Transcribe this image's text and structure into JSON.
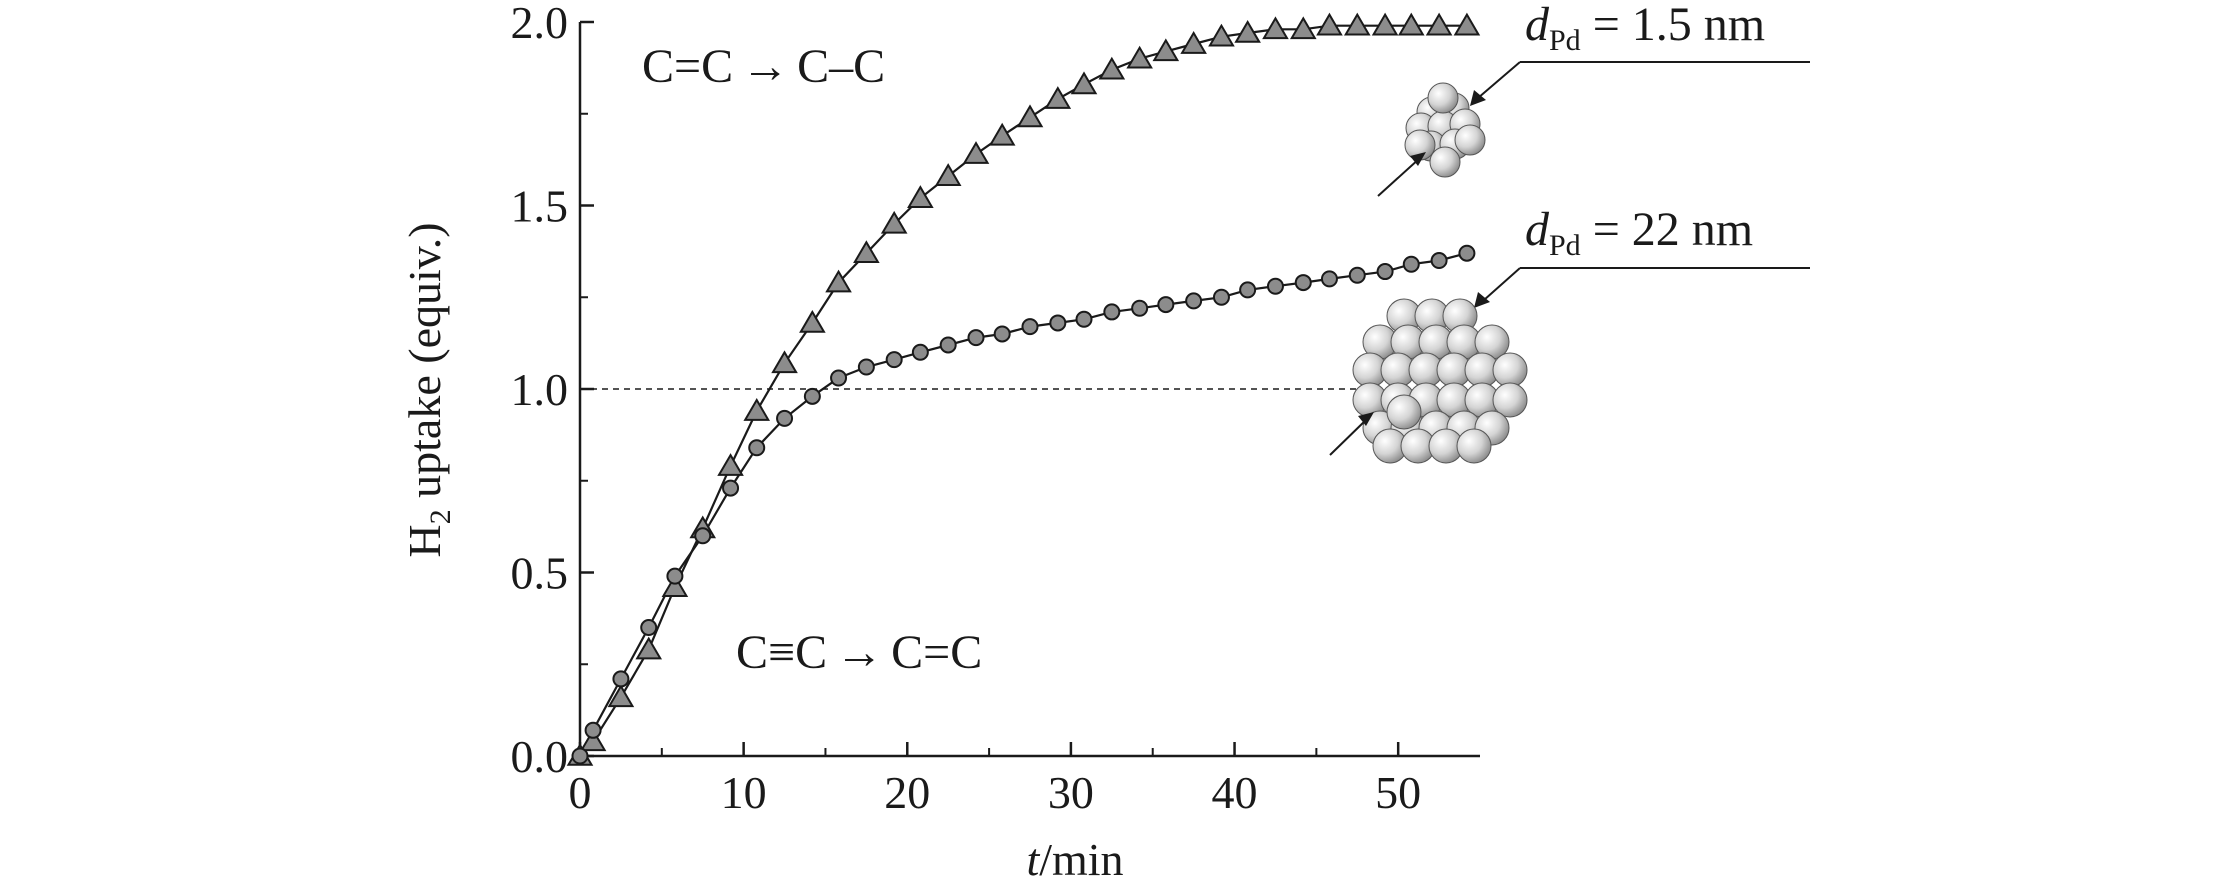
{
  "chart_data": {
    "type": "scatter",
    "xlabel": {
      "italic": "t",
      "rest": "/min"
    },
    "ylabel": {
      "main": "H",
      "sub": "2",
      "rest": " uptake (equiv.)"
    },
    "xlim": [
      0,
      55
    ],
    "ylim": [
      0,
      2.0
    ],
    "x_ticks": [
      0,
      10,
      20,
      30,
      40,
      50
    ],
    "x_tick_labels": [
      "0",
      "10",
      "20",
      "30",
      "40",
      "50"
    ],
    "y_ticks": [
      0,
      0.5,
      1.0,
      1.5,
      2.0
    ],
    "y_tick_labels": [
      "0.0",
      "0.5",
      "1.0",
      "1.5",
      "2.0"
    ],
    "reference_line": {
      "y": 1.0,
      "style": "dashed"
    },
    "grid": false,
    "series": [
      {
        "label": {
          "var": "d",
          "sub": "Pd",
          "rest": " = 1.5 nm"
        },
        "marker": "triangle",
        "color": "#8c8c8c",
        "x": [
          0,
          0.8,
          2.5,
          4.2,
          5.8,
          7.5,
          9.2,
          10.8,
          12.5,
          14.2,
          15.8,
          17.5,
          19.2,
          20.8,
          22.5,
          24.2,
          25.8,
          27.5,
          29.2,
          30.8,
          32.5,
          34.2,
          35.8,
          37.5,
          39.2,
          40.8,
          42.5,
          44.2,
          45.8,
          47.5,
          49.2,
          50.8,
          52.5,
          54.2
        ],
        "y": [
          0.0,
          0.04,
          0.16,
          0.29,
          0.46,
          0.62,
          0.79,
          0.94,
          1.07,
          1.18,
          1.29,
          1.37,
          1.45,
          1.52,
          1.58,
          1.64,
          1.69,
          1.74,
          1.79,
          1.83,
          1.87,
          1.9,
          1.92,
          1.94,
          1.96,
          1.97,
          1.98,
          1.98,
          1.99,
          1.99,
          1.99,
          1.99,
          1.99,
          1.99
        ]
      },
      {
        "label": {
          "var": "d",
          "sub": "Pd",
          "rest": " = 22 nm"
        },
        "marker": "circle",
        "color": "#8c8c8c",
        "x": [
          0,
          0.8,
          2.5,
          4.2,
          5.8,
          7.5,
          9.2,
          10.8,
          12.5,
          14.2,
          15.8,
          17.5,
          19.2,
          20.8,
          22.5,
          24.2,
          25.8,
          27.5,
          29.2,
          30.8,
          32.5,
          34.2,
          35.8,
          37.5,
          39.2,
          40.8,
          42.5,
          44.2,
          45.8,
          47.5,
          49.2,
          50.8,
          52.5,
          54.2
        ],
        "y": [
          0.0,
          0.07,
          0.21,
          0.35,
          0.49,
          0.6,
          0.73,
          0.84,
          0.92,
          0.98,
          1.03,
          1.06,
          1.08,
          1.1,
          1.12,
          1.14,
          1.15,
          1.17,
          1.18,
          1.19,
          1.21,
          1.22,
          1.23,
          1.24,
          1.25,
          1.27,
          1.28,
          1.29,
          1.3,
          1.31,
          1.32,
          1.34,
          1.35,
          1.37
        ]
      }
    ],
    "annotations": {
      "top": {
        "left": "C=C",
        "arrow": "→",
        "right": "C–C"
      },
      "bottom": {
        "left": "C≡C",
        "arrow": "→",
        "right": "C=C"
      }
    }
  }
}
